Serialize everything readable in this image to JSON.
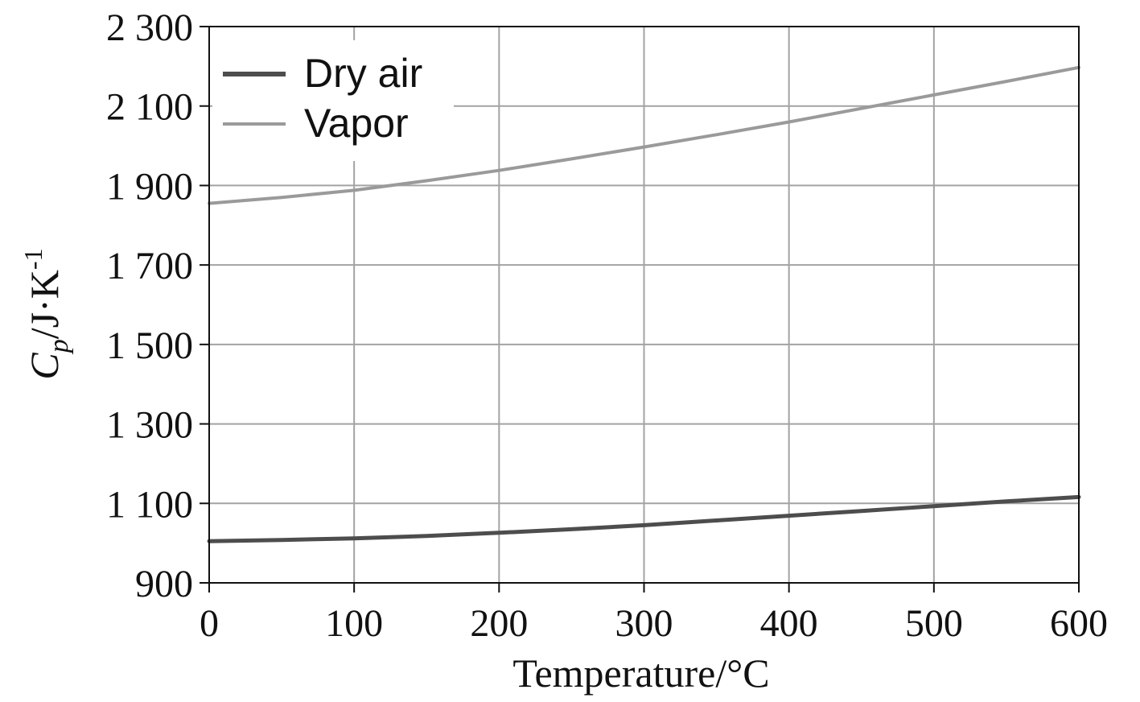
{
  "chart_data": {
    "type": "line",
    "title": "",
    "xlabel": "Temperature/°C",
    "ylabel": {
      "symbol": "C",
      "subscript": "p",
      "unit": "/J·K",
      "exponent": "-1"
    },
    "xlim": [
      0,
      600
    ],
    "ylim": [
      900,
      2300
    ],
    "xticks": [
      0,
      100,
      200,
      300,
      400,
      500,
      600
    ],
    "xtick_labels": [
      "0",
      "100",
      "200",
      "300",
      "400",
      "500",
      "600"
    ],
    "yticks": [
      900,
      1100,
      1300,
      1500,
      1700,
      1900,
      2100,
      2300
    ],
    "ytick_labels": [
      "900",
      "1 100",
      "1 300",
      "1 500",
      "1 700",
      "1 900",
      "2 100",
      "2 300"
    ],
    "grid": true,
    "legend_position": "top-left",
    "x": [
      0,
      50,
      100,
      150,
      200,
      250,
      300,
      350,
      400,
      450,
      500,
      550,
      600
    ],
    "series": [
      {
        "name": "Dry air",
        "color": "#4d4d4d",
        "values": [
          1005,
          1008,
          1012,
          1018,
          1026,
          1035,
          1045,
          1057,
          1069,
          1081,
          1093,
          1105,
          1116
        ]
      },
      {
        "name": "Vapor",
        "color": "#9a9a9a",
        "values": [
          1855,
          1870,
          1888,
          1912,
          1938,
          1967,
          1997,
          2028,
          2060,
          2094,
          2128,
          2162,
          2197
        ]
      }
    ]
  }
}
